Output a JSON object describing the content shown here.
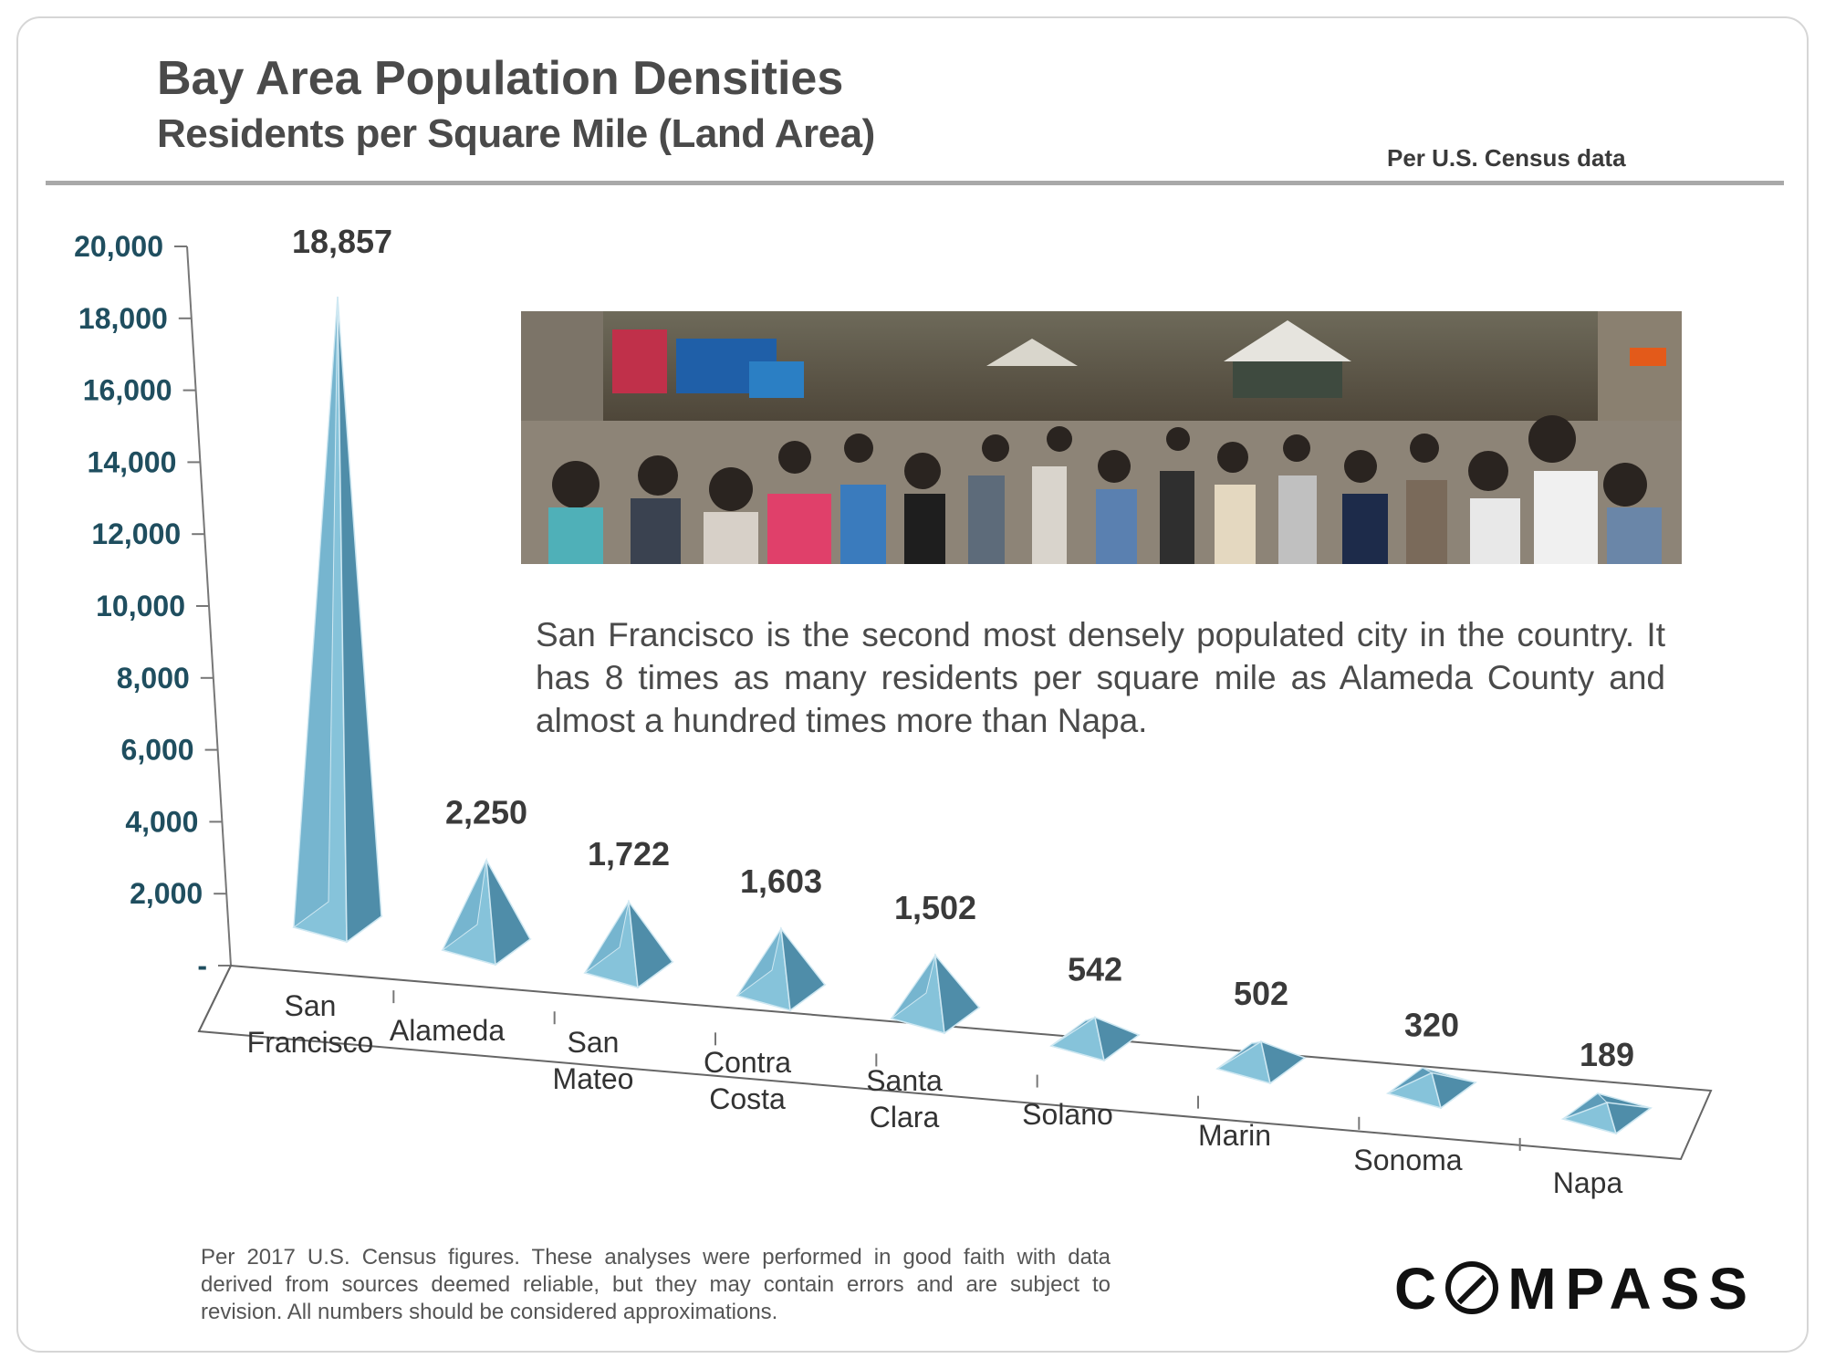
{
  "header": {
    "title": "Bay Area Population Densities",
    "subtitle": "Residents per Square Mile (Land Area)",
    "source": "Per U.S. Census data"
  },
  "annotation": "San Francisco is the second most densely populated city in the country. It has 8 times as many residents per square mile as Alameda County and almost a hundred times more than Napa.",
  "footnote": "Per 2017 U.S. Census figures. These analyses were performed in good faith with data derived from sources deemed reliable, but they may contain errors and are subject to revision. All numbers should be considered approximations.",
  "logo": {
    "prefix": "C",
    "suffix": "MPASS"
  },
  "colors": {
    "pyramid_light": "#86c3da",
    "pyramid_mid": "#6aaac6",
    "pyramid_dark": "#4f8da9",
    "axis_text": "#1f4e5f"
  },
  "chart_data": {
    "type": "bar",
    "style": "3d-pyramid",
    "title": "Bay Area Population Densities",
    "subtitle": "Residents per Square Mile (Land Area)",
    "ylabel": "",
    "xlabel": "",
    "ylim": [
      0,
      20000
    ],
    "yticks": [
      {
        "value": 0,
        "label": "-"
      },
      {
        "value": 2000,
        "label": "2,000"
      },
      {
        "value": 4000,
        "label": "4,000"
      },
      {
        "value": 6000,
        "label": "6,000"
      },
      {
        "value": 8000,
        "label": "8,000"
      },
      {
        "value": 10000,
        "label": "10,000"
      },
      {
        "value": 12000,
        "label": "12,000"
      },
      {
        "value": 14000,
        "label": "14,000"
      },
      {
        "value": 16000,
        "label": "16,000"
      },
      {
        "value": 18000,
        "label": "18,000"
      },
      {
        "value": 20000,
        "label": "20,000"
      }
    ],
    "categories": [
      [
        "San",
        "Francisco"
      ],
      [
        "Alameda"
      ],
      [
        "San",
        "Mateo"
      ],
      [
        "Contra",
        "Costa"
      ],
      [
        "Santa",
        "Clara"
      ],
      [
        "Solano"
      ],
      [
        "Marin"
      ],
      [
        "Sonoma"
      ],
      [
        "Napa"
      ]
    ],
    "values": [
      18857,
      2250,
      1722,
      1603,
      1502,
      542,
      502,
      320,
      189
    ],
    "value_labels": [
      "18,857",
      "2,250",
      "1,722",
      "1,603",
      "1,502",
      "542",
      "502",
      "320",
      "189"
    ]
  }
}
